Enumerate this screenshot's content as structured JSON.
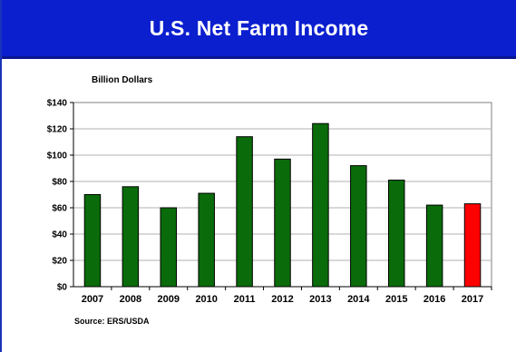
{
  "slide": {
    "title": "U.S. Net Farm Income",
    "source": "Source: ERS/USDA"
  },
  "chart_data": {
    "type": "bar",
    "title": "U.S. Net Farm Income",
    "ylabel": "Billion Dollars",
    "xlabel": "",
    "categories": [
      "2007",
      "2008",
      "2009",
      "2010",
      "2011",
      "2012",
      "2013",
      "2014",
      "2015",
      "2016",
      "2017"
    ],
    "values": [
      70,
      76,
      60,
      71,
      114,
      97,
      124,
      92,
      81,
      62,
      63
    ],
    "ylim": [
      0,
      140
    ],
    "yticks": [
      0,
      20,
      40,
      60,
      80,
      100,
      120,
      140
    ],
    "ytick_labels": [
      "$0",
      "$20",
      "$40",
      "$60",
      "$80",
      "$100",
      "$120",
      "$140"
    ],
    "grid": true,
    "colors": {
      "default": "#0a6b0a",
      "highlight": "#ff0000",
      "highlight_category": "2017"
    }
  }
}
